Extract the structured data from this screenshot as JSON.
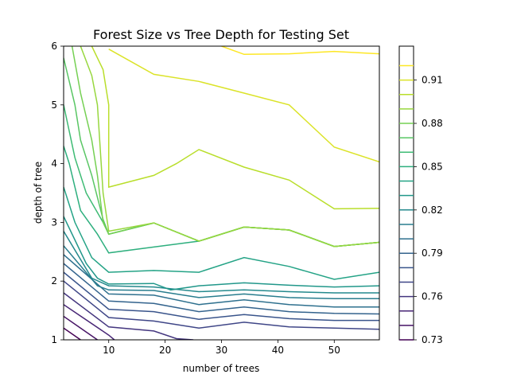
{
  "chart_data": {
    "type": "contour",
    "title": "Forest Size vs Tree Depth for Testing Set",
    "xlabel": "number of trees",
    "ylabel": "depth of tree",
    "xlim": [
      2,
      58
    ],
    "ylim": [
      1,
      6
    ],
    "x_ticks": [
      10,
      20,
      30,
      40,
      50
    ],
    "y_ticks": [
      1,
      2,
      3,
      4,
      5,
      6
    ],
    "colormap": "viridis",
    "grid": false,
    "colorbar": {
      "placement": "right",
      "levels": [
        0.73,
        0.74,
        0.75,
        0.76,
        0.77,
        0.78,
        0.79,
        0.8,
        0.81,
        0.82,
        0.83,
        0.84,
        0.85,
        0.86,
        0.87,
        0.88,
        0.89,
        0.9,
        0.91,
        0.92
      ],
      "tick_labels": [
        "0.73",
        "0.76",
        "0.79",
        "0.82",
        "0.85",
        "0.88",
        "0.91"
      ],
      "tick_values": [
        0.73,
        0.76,
        0.79,
        0.82,
        0.85,
        0.88,
        0.91
      ]
    },
    "contours": [
      {
        "level": 0.73,
        "points": [
          [
            2,
            1.2
          ],
          [
            5,
            1
          ]
        ]
      },
      {
        "level": 0.74,
        "points": [
          [
            2,
            1.4
          ],
          [
            8,
            1
          ]
        ]
      },
      {
        "level": 0.75,
        "points": [
          [
            2,
            1.6
          ],
          [
            10,
            1.08
          ],
          [
            11,
            1
          ]
        ]
      },
      {
        "level": 0.76,
        "points": [
          [
            2,
            1.8
          ],
          [
            10,
            1.22
          ],
          [
            18,
            1.15
          ],
          [
            22,
            1.02
          ],
          [
            25,
            1
          ]
        ]
      },
      {
        "level": 0.77,
        "points": [
          [
            2,
            2
          ],
          [
            10,
            1.38
          ],
          [
            18,
            1.32
          ],
          [
            26,
            1.2
          ],
          [
            34,
            1.3
          ],
          [
            42,
            1.22
          ],
          [
            50,
            1.2
          ],
          [
            58,
            1.18
          ]
        ]
      },
      {
        "level": 0.78,
        "points": [
          [
            2,
            2.15
          ],
          [
            10,
            1.52
          ],
          [
            18,
            1.48
          ],
          [
            26,
            1.35
          ],
          [
            34,
            1.43
          ],
          [
            42,
            1.36
          ],
          [
            50,
            1.33
          ],
          [
            58,
            1.33
          ]
        ]
      },
      {
        "level": 0.79,
        "points": [
          [
            2,
            2.3
          ],
          [
            10,
            1.66
          ],
          [
            18,
            1.62
          ],
          [
            26,
            1.48
          ],
          [
            34,
            1.56
          ],
          [
            42,
            1.48
          ],
          [
            50,
            1.45
          ],
          [
            58,
            1.44
          ]
        ]
      },
      {
        "level": 0.8,
        "points": [
          [
            2,
            2.45
          ],
          [
            10,
            1.78
          ],
          [
            18,
            1.76
          ],
          [
            26,
            1.6
          ],
          [
            34,
            1.68
          ],
          [
            42,
            1.6
          ],
          [
            50,
            1.56
          ],
          [
            58,
            1.56
          ]
        ]
      },
      {
        "level": 0.81,
        "points": [
          [
            2,
            2.6
          ],
          [
            8,
            1.92
          ],
          [
            10,
            1.85
          ],
          [
            18,
            1.84
          ],
          [
            26,
            1.72
          ],
          [
            34,
            1.78
          ],
          [
            42,
            1.72
          ],
          [
            50,
            1.7
          ],
          [
            58,
            1.7
          ]
        ]
      },
      {
        "level": 0.82,
        "points": [
          [
            2,
            2.85
          ],
          [
            7,
            2.05
          ],
          [
            10,
            1.92
          ],
          [
            18,
            1.9
          ],
          [
            26,
            1.82
          ],
          [
            34,
            1.85
          ],
          [
            42,
            1.82
          ],
          [
            50,
            1.8
          ],
          [
            58,
            1.8
          ]
        ]
      },
      {
        "level": 0.83,
        "points": [
          [
            2,
            3.1
          ],
          [
            6,
            2.3
          ],
          [
            8,
            2.05
          ],
          [
            10,
            1.95
          ],
          [
            18,
            1.96
          ],
          [
            21,
            1.85
          ],
          [
            26,
            1.92
          ],
          [
            34,
            1.97
          ],
          [
            42,
            1.93
          ],
          [
            50,
            1.9
          ],
          [
            58,
            1.92
          ]
        ]
      },
      {
        "level": 0.84,
        "points": [
          [
            2,
            3.6
          ],
          [
            4,
            3
          ],
          [
            7,
            2.4
          ],
          [
            10,
            2.15
          ],
          [
            18,
            2.18
          ],
          [
            26,
            2.15
          ],
          [
            34,
            2.4
          ],
          [
            42,
            2.25
          ],
          [
            50,
            2.03
          ],
          [
            58,
            2.15
          ]
        ]
      },
      {
        "level": 0.85,
        "points": [
          [
            2,
            4.3
          ],
          [
            3,
            4
          ],
          [
            5,
            3.2
          ],
          [
            8,
            2.8
          ],
          [
            10,
            2.48
          ],
          [
            18,
            2.58
          ],
          [
            26,
            2.68
          ],
          [
            34,
            2.92
          ],
          [
            42,
            2.87
          ],
          [
            50,
            2.59
          ],
          [
            58,
            2.66
          ]
        ]
      },
      {
        "level": 0.86,
        "points": [
          [
            2,
            5
          ],
          [
            4,
            4.1
          ],
          [
            6,
            3.5
          ],
          [
            9,
            3
          ],
          [
            10,
            2.8
          ],
          [
            18,
            2.99
          ],
          [
            26,
            2.68
          ],
          [
            34,
            2.92
          ],
          [
            42,
            2.87
          ],
          [
            50,
            2.59
          ],
          [
            58,
            2.66
          ]
        ]
      },
      {
        "level": 0.87,
        "points": [
          [
            2,
            5.8
          ],
          [
            4,
            5
          ],
          [
            5,
            4.4
          ],
          [
            7,
            3.8
          ],
          [
            9,
            3.05
          ],
          [
            10,
            2.8
          ],
          [
            18,
            2.99
          ],
          [
            26,
            2.68
          ],
          [
            34,
            2.92
          ],
          [
            42,
            2.87
          ],
          [
            50,
            2.59
          ],
          [
            58,
            2.66
          ]
        ]
      },
      {
        "level": 0.88,
        "points": [
          [
            3.5,
            6
          ],
          [
            5,
            5.2
          ],
          [
            7,
            4.4
          ],
          [
            8,
            3.8
          ],
          [
            9,
            3
          ],
          [
            10,
            2.8
          ],
          [
            18,
            2.99
          ],
          [
            26,
            2.68
          ],
          [
            34,
            2.92
          ],
          [
            42,
            2.87
          ],
          [
            50,
            2.59
          ],
          [
            58,
            2.66
          ]
        ]
      },
      {
        "level": 0.89,
        "points": [
          [
            5,
            6
          ],
          [
            7,
            5.5
          ],
          [
            8,
            5
          ],
          [
            9,
            3.5
          ],
          [
            10,
            2.85
          ],
          [
            18,
            2.99
          ],
          [
            26,
            2.68
          ],
          [
            34,
            2.92
          ],
          [
            42,
            2.87
          ],
          [
            50,
            2.59
          ],
          [
            58,
            2.66
          ]
        ]
      },
      {
        "level": 0.9,
        "points": [
          [
            7,
            6
          ],
          [
            9,
            5.6
          ],
          [
            10,
            5
          ],
          [
            10,
            4.05
          ],
          [
            10,
            3.6
          ],
          [
            18,
            3.8
          ],
          [
            22,
            4
          ],
          [
            26,
            4.24
          ],
          [
            34,
            3.94
          ],
          [
            42,
            3.72
          ],
          [
            50,
            3.23
          ],
          [
            58,
            3.24
          ]
        ]
      },
      {
        "level": 0.91,
        "points": [
          [
            10,
            5.95
          ],
          [
            18,
            5.52
          ],
          [
            26,
            5.4
          ],
          [
            34,
            5.2
          ],
          [
            42,
            5
          ],
          [
            50,
            4.28
          ],
          [
            58,
            4.03
          ]
        ]
      },
      {
        "level": 0.92,
        "points": [
          [
            30,
            6
          ],
          [
            34,
            5.86
          ],
          [
            42,
            5.87
          ],
          [
            50,
            5.91
          ],
          [
            58,
            5.87
          ]
        ]
      }
    ]
  }
}
